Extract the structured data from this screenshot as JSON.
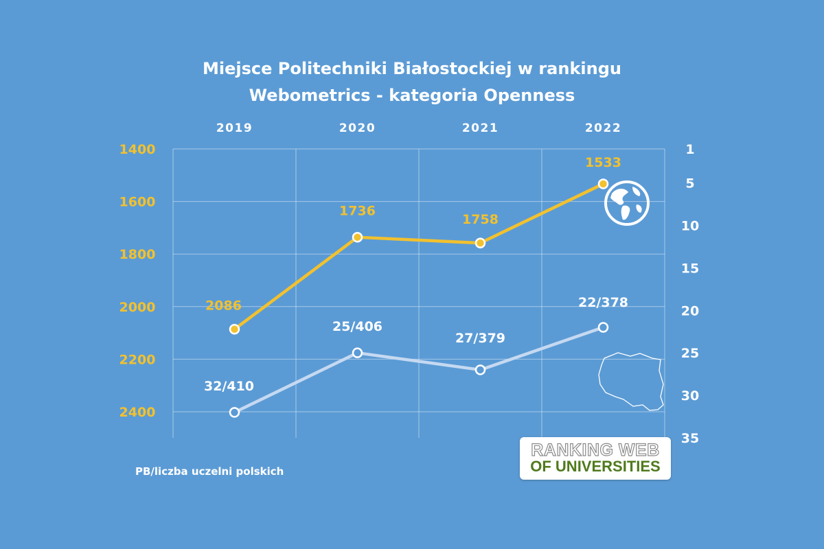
{
  "chart_data": {
    "type": "line",
    "title": "Miejsce Politechniki Białostockiej w rankingu",
    "subtitle": "Webometrics - kategoria Openness",
    "categories": [
      "2019",
      "2020",
      "2021",
      "2022"
    ],
    "left_axis": {
      "ticks": [
        "1400",
        "1600",
        "1800",
        "2000",
        "2200",
        "2400"
      ],
      "range": [
        1400,
        2500
      ],
      "reversed": true
    },
    "right_axis": {
      "ticks": [
        "1",
        "5",
        "10",
        "15",
        "20",
        "25",
        "30",
        "35"
      ],
      "range": [
        1,
        35
      ],
      "reversed": true
    },
    "grid": true,
    "series": [
      {
        "axis": "left",
        "color": "#f2c12e",
        "values": [
          2086,
          1736,
          1758,
          1533
        ],
        "labels": [
          "2086",
          "1736",
          "1758",
          "1533"
        ]
      },
      {
        "axis": "right",
        "color": "#c5d9f1",
        "values": [
          32,
          25,
          27,
          22
        ],
        "labels": [
          "32/410",
          "25/406",
          "27/379",
          "22/378"
        ]
      }
    ],
    "note": "PB/liczba uczelni polskich"
  },
  "logo": {
    "line1": "RANKING WEB",
    "line2": "OF UNIVERSITIES"
  },
  "icons": [
    "globe-icon",
    "poland-map-icon"
  ]
}
